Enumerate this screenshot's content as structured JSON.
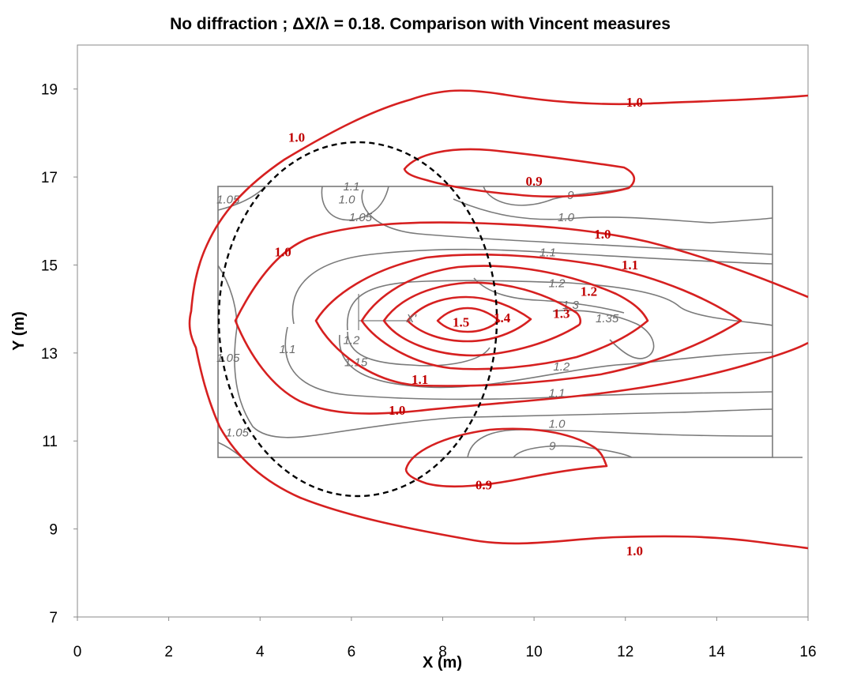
{
  "chart_data": {
    "type": "contour",
    "title": "No diffraction ; ΔX/λ = 0.18. Comparison with Vincent measures",
    "xlabel": "X (m)",
    "ylabel": "Y (m)",
    "xlim": [
      0,
      16
    ],
    "ylim": [
      7,
      20
    ],
    "x_ticks": [
      "0",
      "2",
      "4",
      "6",
      "8",
      "10",
      "12",
      "14",
      "16"
    ],
    "y_ticks": [
      "7",
      "9",
      "11",
      "13",
      "15",
      "17",
      "19"
    ],
    "grid": false,
    "computed_contour_labels": [
      {
        "text": "1.0",
        "x": 12.2,
        "y": 18.6
      },
      {
        "text": "1.0",
        "x": 4.8,
        "y": 17.8
      },
      {
        "text": "0.9",
        "x": 10.0,
        "y": 16.8
      },
      {
        "text": "1.0",
        "x": 11.5,
        "y": 15.6
      },
      {
        "text": "1.0",
        "x": 4.5,
        "y": 15.2
      },
      {
        "text": "1.1",
        "x": 12.1,
        "y": 14.9
      },
      {
        "text": "1.2",
        "x": 11.2,
        "y": 14.3
      },
      {
        "text": "1.3",
        "x": 10.6,
        "y": 13.8
      },
      {
        "text": "1.4",
        "x": 9.3,
        "y": 13.7
      },
      {
        "text": "1.5",
        "x": 8.4,
        "y": 13.6
      },
      {
        "text": "1.1",
        "x": 7.5,
        "y": 12.3
      },
      {
        "text": "1.0",
        "x": 7.0,
        "y": 11.6
      },
      {
        "text": "0.9",
        "x": 8.9,
        "y": 9.9
      },
      {
        "text": "1.0",
        "x": 12.2,
        "y": 8.4
      }
    ],
    "measured_contour_labels": [
      {
        "text": "1.05",
        "x": 3.3,
        "y": 16.4
      },
      {
        "text": "1.0",
        "x": 5.9,
        "y": 16.4
      },
      {
        "text": "1.1",
        "x": 6.0,
        "y": 16.7
      },
      {
        "text": "1.05",
        "x": 6.2,
        "y": 16.0
      },
      {
        "text": "9",
        "x": 10.8,
        "y": 16.5
      },
      {
        "text": "1.0",
        "x": 10.7,
        "y": 16.0
      },
      {
        "text": "1.1",
        "x": 10.3,
        "y": 15.2
      },
      {
        "text": "1.2",
        "x": 10.5,
        "y": 14.5
      },
      {
        "text": "1.3",
        "x": 10.8,
        "y": 14.0
      },
      {
        "text": "1.35",
        "x": 11.6,
        "y": 13.7
      },
      {
        "text": "1.2",
        "x": 6.0,
        "y": 13.2
      },
      {
        "text": "1.15",
        "x": 6.1,
        "y": 12.7
      },
      {
        "text": "1.1",
        "x": 4.6,
        "y": 13.0
      },
      {
        "text": "1.05",
        "x": 3.3,
        "y": 12.8
      },
      {
        "text": "1.2",
        "x": 10.6,
        "y": 12.6
      },
      {
        "text": "1.1",
        "x": 10.5,
        "y": 12.0
      },
      {
        "text": "1.0",
        "x": 10.5,
        "y": 11.3
      },
      {
        "text": "9",
        "x": 10.4,
        "y": 10.8
      },
      {
        "text": "1.05",
        "x": 3.5,
        "y": 11.1
      }
    ],
    "markers": [
      {
        "text": "X'",
        "x": 7.2,
        "y": 13.7
      }
    ]
  },
  "colors": {
    "computed": "#d62020",
    "measured": "#7a7a7a",
    "ellipse": "#000000"
  }
}
